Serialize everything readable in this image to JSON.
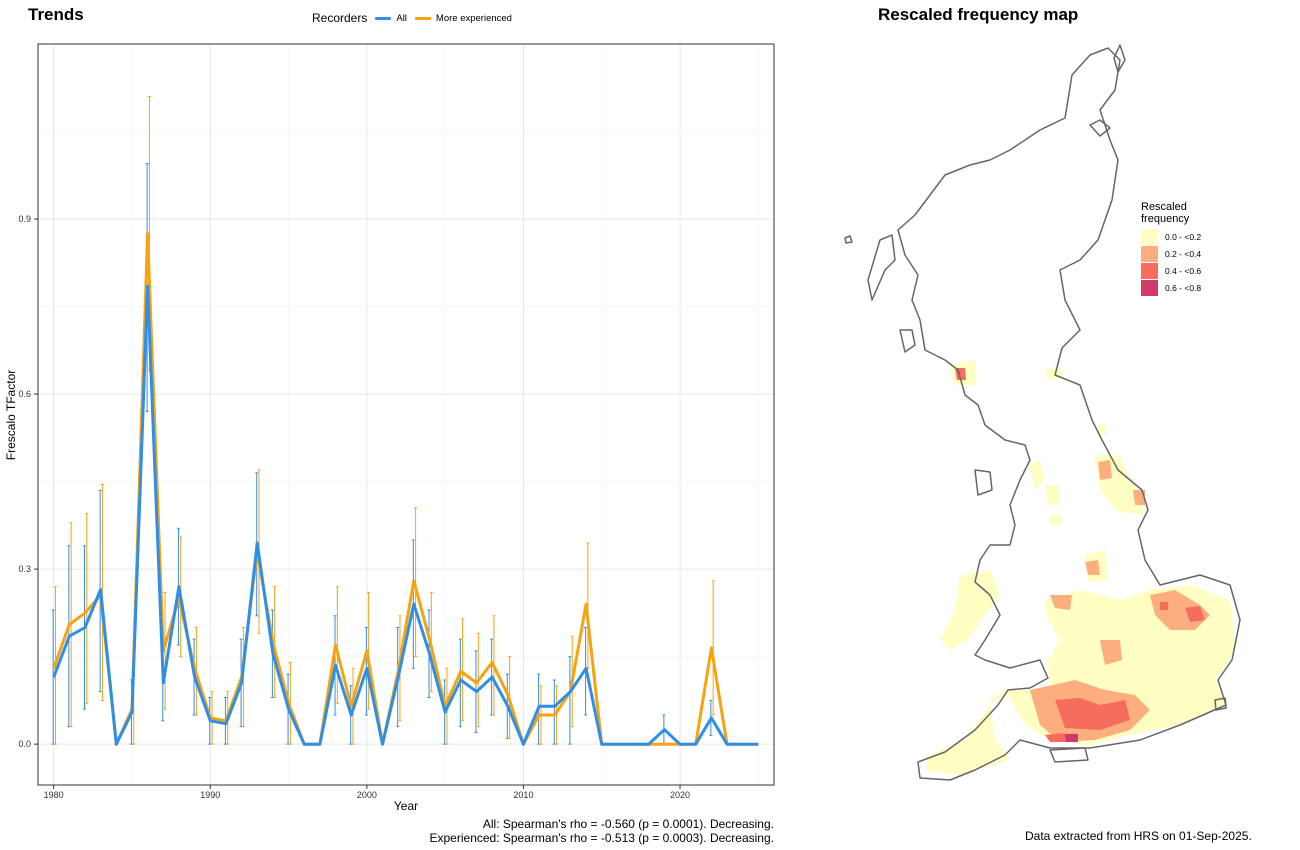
{
  "panels": {
    "trends_title": "Trends",
    "map_title": "Rescaled frequency map"
  },
  "legend": {
    "title": "Recorders",
    "items": [
      {
        "label": "All",
        "color": "#2f8fe8"
      },
      {
        "label": "More experienced",
        "color": "#f6a30f"
      }
    ]
  },
  "chart_data": {
    "type": "line",
    "xlabel": "Year",
    "ylabel": "Frescalo TFactor",
    "xlim": [
      1979,
      2026
    ],
    "ylim": [
      -0.07,
      1.2
    ],
    "x_ticks": [
      1980,
      1990,
      2000,
      2010,
      2020
    ],
    "y_ticks": [
      "0.0",
      "0.3",
      "0.6",
      "0.9"
    ],
    "y_tick_values": [
      0,
      0.3,
      0.6,
      0.9
    ],
    "grid": true,
    "legend_position": "top",
    "x": [
      1980,
      1981,
      1982,
      1983,
      1984,
      1985,
      1986,
      1987,
      1988,
      1989,
      1990,
      1991,
      1992,
      1993,
      1994,
      1995,
      1996,
      1997,
      1998,
      1999,
      2000,
      2001,
      2002,
      2003,
      2004,
      2005,
      2006,
      2007,
      2008,
      2009,
      2010,
      2011,
      2012,
      2013,
      2014,
      2015,
      2016,
      2017,
      2018,
      2019,
      2020,
      2021,
      2022,
      2023,
      2024,
      2025
    ],
    "series": [
      {
        "name": "All",
        "color": "#2f8fe8",
        "values": [
          0.115,
          0.185,
          0.2,
          0.265,
          0,
          0.055,
          0.785,
          0.105,
          0.27,
          0.115,
          0.04,
          0.035,
          0.105,
          0.345,
          0.155,
          0.06,
          0,
          0,
          0.135,
          0.05,
          0.13,
          0,
          0.115,
          0.24,
          0.155,
          0.055,
          0.11,
          0.09,
          0.115,
          0.065,
          0,
          0.065,
          0.065,
          0.09,
          0.13,
          0,
          0,
          0,
          0,
          0.025,
          0,
          0,
          0.045,
          0,
          0,
          0
        ],
        "lower": [
          0,
          0.03,
          0.06,
          0.09,
          0,
          0,
          0.57,
          0.04,
          0.17,
          0.05,
          0,
          0,
          0.03,
          0.22,
          0.08,
          0,
          0,
          0,
          0.05,
          0,
          0.05,
          0,
          0.03,
          0.13,
          0.08,
          0,
          0.03,
          0.02,
          0.05,
          0.01,
          0,
          0,
          0,
          0,
          0.05,
          0,
          0,
          0,
          0,
          0,
          0,
          0,
          0.015,
          0,
          0,
          0
        ],
        "upper": [
          0.23,
          0.34,
          0.34,
          0.435,
          0,
          0.11,
          0.995,
          0.17,
          0.37,
          0.18,
          0.08,
          0.08,
          0.18,
          0.465,
          0.23,
          0.12,
          0,
          0,
          0.22,
          0.1,
          0.2,
          0,
          0.2,
          0.35,
          0.23,
          0.11,
          0.18,
          0.16,
          0.18,
          0.12,
          0,
          0.12,
          0.11,
          0.15,
          0.2,
          0,
          0,
          0,
          0,
          0.05,
          0,
          0,
          0.075,
          0,
          0,
          0
        ]
      },
      {
        "name": "More experienced",
        "color": "#f6a30f",
        "values": [
          0.13,
          0.205,
          0.225,
          0.255,
          0,
          0.06,
          0.875,
          0.16,
          0.25,
          0.13,
          0.045,
          0.04,
          0.115,
          0.33,
          0.175,
          0.07,
          0,
          0,
          0.17,
          0.065,
          0.16,
          0,
          0.125,
          0.28,
          0.18,
          0.065,
          0.125,
          0.105,
          0.14,
          0.085,
          0,
          0.05,
          0.05,
          0.09,
          0.24,
          0,
          0,
          0,
          0,
          0,
          0,
          0,
          0.165,
          0,
          0,
          0
        ],
        "lower": [
          0,
          0.03,
          0.07,
          0.075,
          0,
          0,
          0.64,
          0.06,
          0.15,
          0.05,
          0,
          0,
          0.03,
          0.19,
          0.08,
          0,
          0,
          0,
          0.07,
          0,
          0.06,
          0,
          0.04,
          0.15,
          0.09,
          0,
          0.04,
          0.03,
          0.05,
          0.01,
          0,
          0,
          0,
          0.03,
          0.13,
          0,
          0,
          0,
          0,
          0,
          0,
          0,
          0.05,
          0,
          0,
          0
        ],
        "upper": [
          0.27,
          0.38,
          0.395,
          0.445,
          0,
          0.12,
          1.11,
          0.26,
          0.355,
          0.2,
          0.09,
          0.09,
          0.2,
          0.47,
          0.27,
          0.14,
          0,
          0,
          0.27,
          0.13,
          0.26,
          0,
          0.22,
          0.405,
          0.26,
          0.13,
          0.215,
          0.19,
          0.22,
          0.15,
          0,
          0.1,
          0.1,
          0.185,
          0.345,
          0,
          0,
          0,
          0,
          0,
          0,
          0,
          0.28,
          0,
          0,
          0
        ]
      }
    ]
  },
  "stats": {
    "all": "All: Spearman's rho = -0.560 (p = 0.0001). Decreasing.",
    "experienced": "Experienced: Spearman's rho = -0.513 (p = 0.0003). Decreasing."
  },
  "map": {
    "legend_title_line1": "Rescaled",
    "legend_title_line2": "frequency",
    "outline_color": "#666666",
    "classes": [
      {
        "label": "0.0 - <0.2",
        "color": "#ffffc4"
      },
      {
        "label": "0.2 - <0.4",
        "color": "#fcae7e"
      },
      {
        "label": "0.4 - <0.6",
        "color": "#f66d5e"
      },
      {
        "label": "0.6 - <0.8",
        "color": "#cf3a6a"
      }
    ],
    "note": "Data extracted from HRS on 01-Sep-2025."
  }
}
